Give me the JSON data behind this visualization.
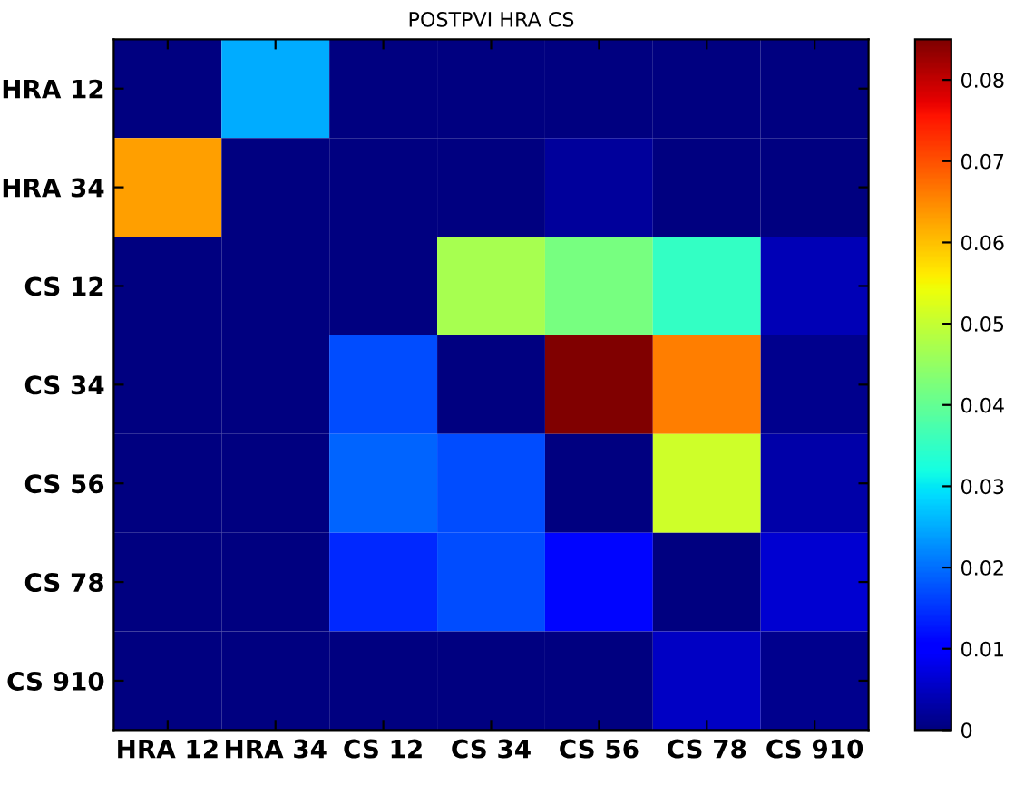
{
  "chart_data": {
    "type": "heatmap",
    "title": "POSTPVI HRA CS",
    "categories": [
      "HRA 12",
      "HRA 34",
      "CS 12",
      "CS 34",
      "CS 56",
      "CS 78",
      "CS 910"
    ],
    "y_categories": [
      "HRA 12",
      "HRA 34",
      "CS 12",
      "CS 34",
      "CS 56",
      "CS 78",
      "CS 910"
    ],
    "cells": [
      [
        0,
        0.025,
        0,
        0,
        0,
        0,
        0
      ],
      [
        0.063,
        0,
        0,
        0,
        0.002,
        0,
        0
      ],
      [
        0,
        0,
        0,
        0.047,
        0.042,
        0.035,
        0.004
      ],
      [
        0,
        0,
        0.017,
        0,
        0.085,
        0.066,
        0.001
      ],
      [
        0,
        0,
        0.019,
        0.017,
        0,
        0.051,
        0.003
      ],
      [
        0,
        0,
        0.014,
        0.017,
        0.011,
        0,
        0.006
      ],
      [
        0,
        0,
        0,
        0,
        0,
        0.005,
        0.001
      ]
    ],
    "clim": [
      0,
      0.085
    ],
    "cticks": [
      0,
      0.01,
      0.02,
      0.03,
      0.04,
      0.05,
      0.06,
      0.07,
      0.08
    ]
  }
}
